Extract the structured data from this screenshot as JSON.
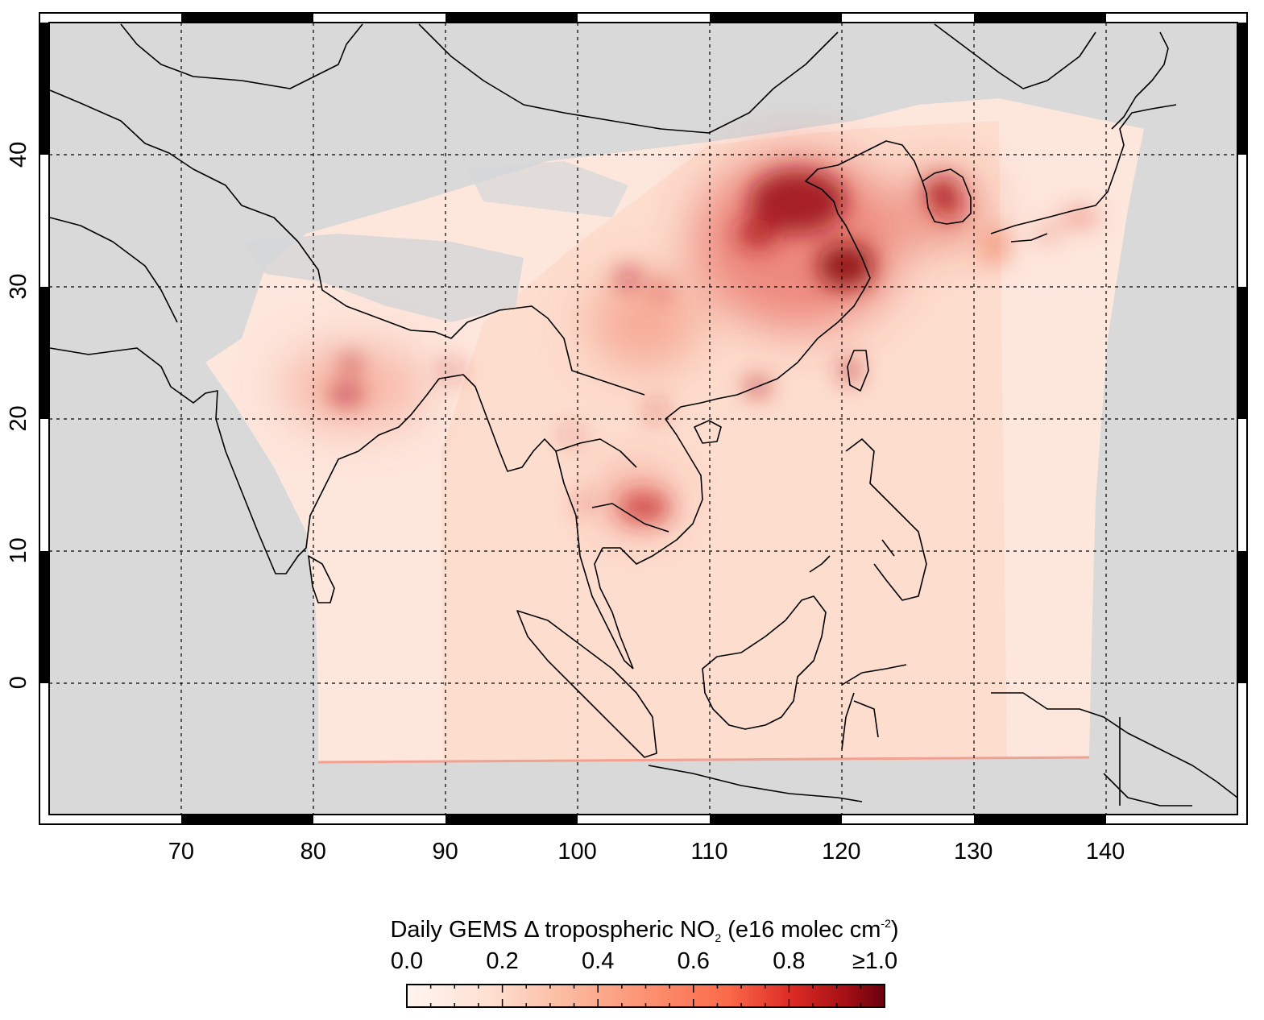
{
  "map": {
    "lon_range": [
      60,
      150
    ],
    "lat_range": [
      -10,
      50
    ],
    "lon_ticks": [
      {
        "value": 70,
        "label": "70"
      },
      {
        "value": 80,
        "label": "80"
      },
      {
        "value": 90,
        "label": "90"
      },
      {
        "value": 100,
        "label": "100"
      },
      {
        "value": 110,
        "label": "110"
      },
      {
        "value": 120,
        "label": "120"
      },
      {
        "value": 130,
        "label": "130"
      },
      {
        "value": 140,
        "label": "140"
      }
    ],
    "lat_ticks": [
      {
        "value": 0,
        "label": "0"
      },
      {
        "value": 10,
        "label": "10"
      },
      {
        "value": 20,
        "label": "20"
      },
      {
        "value": 30,
        "label": "30"
      },
      {
        "value": 40,
        "label": "40"
      }
    ],
    "land_color": "#d9d9d9",
    "border_color": "#000000",
    "grid": "dashed"
  },
  "colorbar": {
    "title_main": "Daily GEMS Δ tropospheric NO",
    "title_sub": "2",
    "title_unit_open": " (e16 molec cm",
    "title_sup": "-2",
    "title_close": ")",
    "tick_labels": [
      "0.0",
      "0.2",
      "0.4",
      "0.6",
      "0.8",
      "≥1.0"
    ],
    "range": [
      0.0,
      1.0
    ],
    "colors": [
      "#fff5f0",
      "#fdd2bf",
      "#fca486",
      "#fb7050",
      "#ef3c2c",
      "#c4161c",
      "#67000d"
    ]
  }
}
